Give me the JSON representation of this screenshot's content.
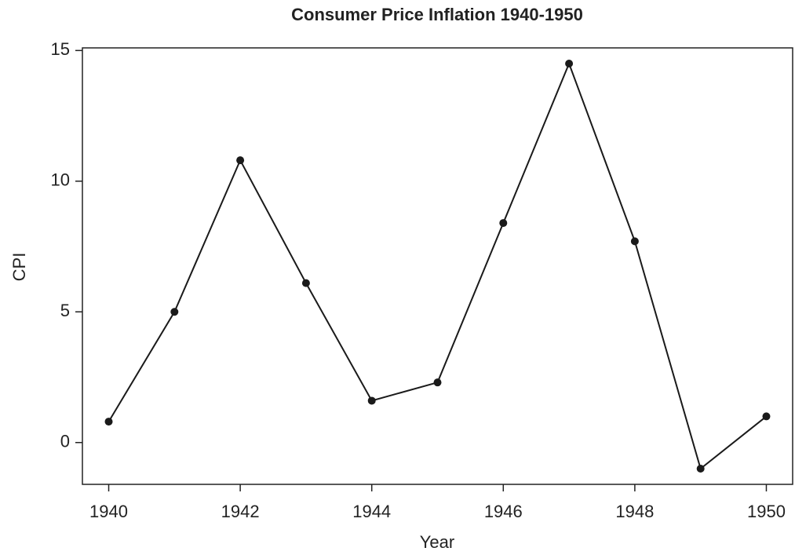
{
  "chart_data": {
    "type": "line",
    "title": "Consumer Price Inflation 1940-1950",
    "x_label": "Year",
    "y_label": "CPI",
    "x": [
      1940,
      1941,
      1942,
      1943,
      1944,
      1945,
      1946,
      1947,
      1948,
      1949,
      1950
    ],
    "series": [
      {
        "name": "CPI",
        "color": "#1a1a1a",
        "values": [
          0.8,
          5.0,
          10.8,
          6.1,
          1.6,
          2.3,
          8.4,
          14.5,
          7.7,
          -1.0,
          1.0
        ]
      }
    ],
    "xlim": [
      1939.6,
      1950.4
    ],
    "xticks": [
      1940,
      1942,
      1944,
      1946,
      1948,
      1950
    ],
    "ylim": [
      -1.6,
      15.1
    ],
    "yticks": [
      0,
      5,
      10,
      15
    ],
    "grid": false
  }
}
